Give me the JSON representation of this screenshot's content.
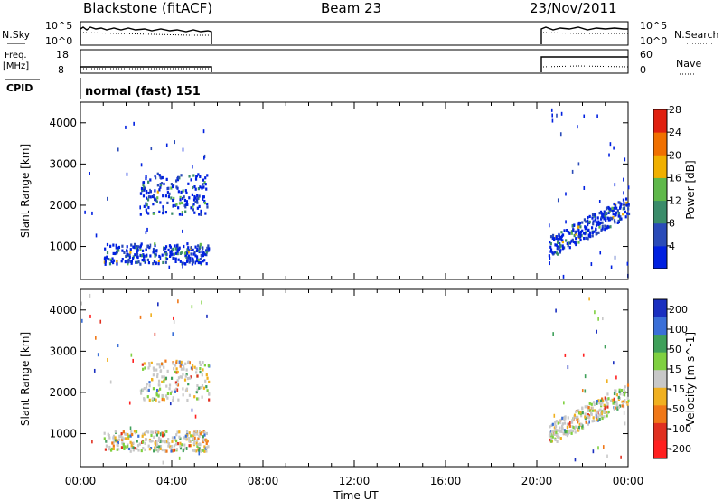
{
  "header": {
    "station": "Blackstone (fitACF)",
    "beam": "Beam 23",
    "date": "23/Nov/2011"
  },
  "panels": {
    "nsky": {
      "label": "N.Sky",
      "left_ticks": [
        "10^5",
        "10^0"
      ],
      "right_ticks": [
        "10^5",
        "10^0"
      ],
      "right_label": "N.Search"
    },
    "freq": {
      "label_top": "Freq.",
      "label_unit": "[MHz]",
      "left_ticks": [
        "18",
        "8"
      ],
      "right_ticks": [
        "60",
        "0"
      ],
      "right_label": "Nave"
    },
    "cpid": {
      "label": "CPID",
      "value": "normal (fast) 151"
    }
  },
  "chart_data": [
    {
      "type": "heatmap",
      "name": "power",
      "ylabel": "Slant Range [km]",
      "xlabel": "",
      "yticks": [
        1000,
        2000,
        3000,
        4000
      ],
      "ylim": [
        200,
        4500
      ],
      "colorbar": {
        "label": "Power [dB]",
        "ticks": [
          "4",
          "8",
          "12",
          "16",
          "20",
          "24",
          "28"
        ],
        "colors": [
          "#0020e0",
          "#2a4bb8",
          "#3a8c6a",
          "#5fb84a",
          "#f0b000",
          "#f07000",
          "#e02010"
        ]
      },
      "regions": [
        {
          "x0": 1.0,
          "x1": 5.6,
          "y0": 600,
          "y1": 1100,
          "level": 1
        },
        {
          "x0": 2.6,
          "x1": 5.6,
          "y0": 1800,
          "y1": 2800,
          "level": 1
        },
        {
          "x0": 20.5,
          "x1": 24.0,
          "y0": 800,
          "y1": 2300,
          "level": 2
        }
      ]
    },
    {
      "type": "heatmap",
      "name": "velocity",
      "ylabel": "Slant Range [km]",
      "xlabel": "Time UT",
      "yticks": [
        1000,
        2000,
        3000,
        4000
      ],
      "ylim": [
        200,
        4500
      ],
      "xticks": [
        "00:00",
        "04:00",
        "08:00",
        "12:00",
        "16:00",
        "20:00",
        "00:00"
      ],
      "colorbar": {
        "label": "Velocity [m s^-1]",
        "ticks": [
          "200",
          "100",
          "50",
          "15",
          "-15",
          "-50",
          "-100",
          "-200"
        ],
        "colors": [
          "#1a2fc0",
          "#3a6fd8",
          "#3fa05a",
          "#7fd040",
          "#c8c8c8",
          "#f0b020",
          "#f07818",
          "#e03020",
          "#ff2020"
        ]
      }
    }
  ]
}
